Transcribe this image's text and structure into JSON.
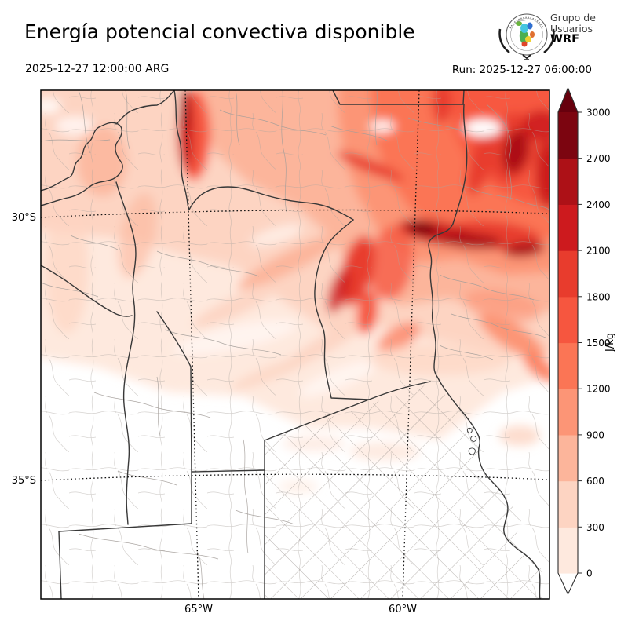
{
  "header": {
    "title": "Energía potencial convectiva disponible",
    "valid_time": "2025-12-27 12:00:00 ARG",
    "run_time": "Run: 2025-12-27 06:00:00",
    "logo": {
      "line1": "Grupo de",
      "line2": "Usuarios",
      "line3": "WRF"
    }
  },
  "map": {
    "lat_labels": [
      "30°S",
      "35°S"
    ],
    "lon_labels": [
      "65°W",
      "60°W"
    ],
    "field_summary": "CAPE shading: strongest values (1800 to >3000 J/kg) over the north-east of the domain with dark cores near 30°S/60°W and the NE corner; moderate values (300–1200) over the north-west and centre; near-zero (white) over the south and Buenos Aires."
  },
  "colorbar": {
    "unit": "J/kg",
    "tick_values": [
      0,
      300,
      600,
      900,
      1200,
      1500,
      1800,
      2100,
      2400,
      2700,
      3000
    ],
    "segment_colors": [
      "#fee9de",
      "#fdd4c2",
      "#fcb59b",
      "#fc9576",
      "#fb7555",
      "#f6563f",
      "#e83c2d",
      "#cd1a1e",
      "#ad1117",
      "#7c0510"
    ],
    "under_color": "#ffffff",
    "over_color": "#67000d",
    "frame_color": "#2f2f2f"
  }
}
